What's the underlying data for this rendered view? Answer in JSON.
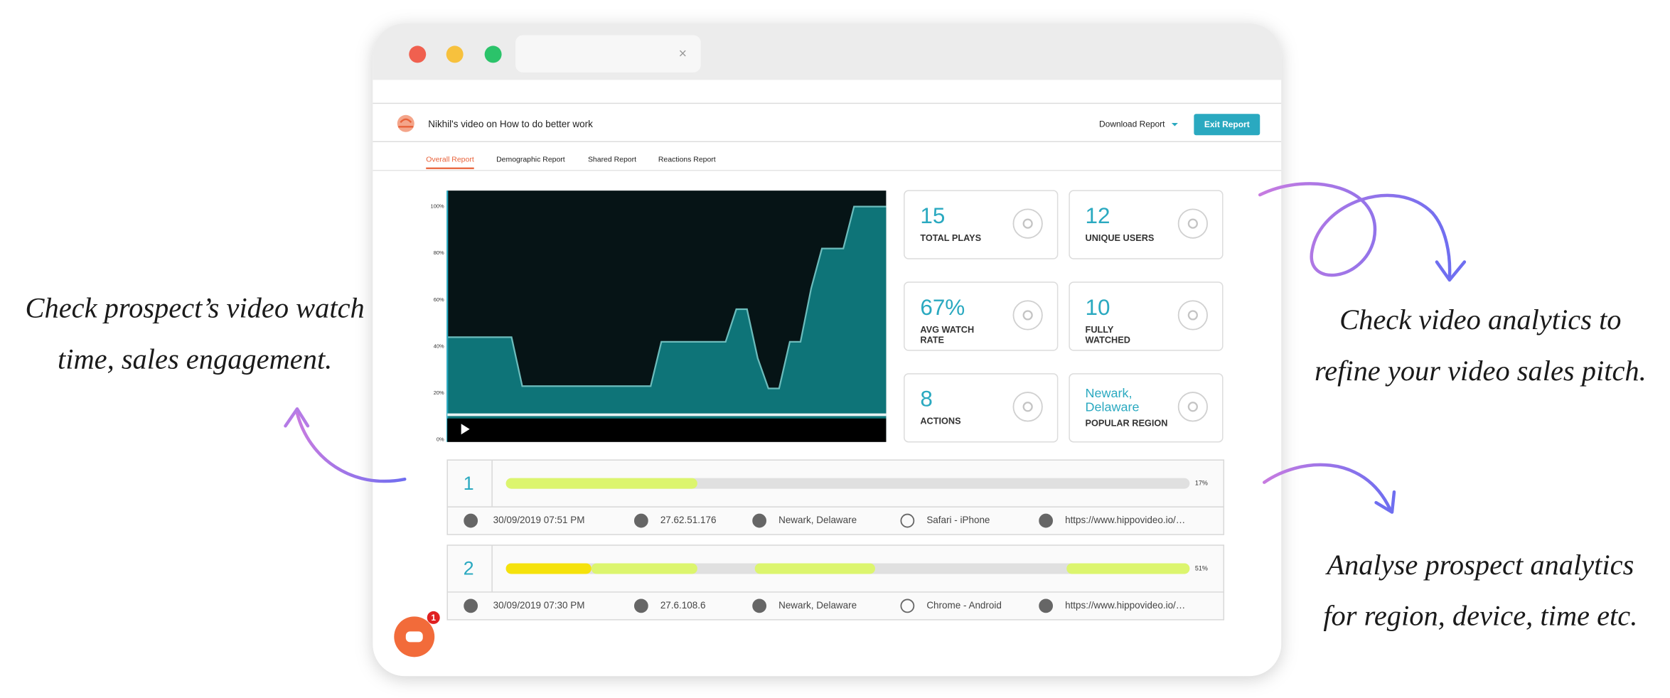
{
  "browser": {
    "tab_close": "×"
  },
  "header": {
    "title": "Nikhil's video on How to do better work",
    "download": "Download Report",
    "exit": "Exit Report"
  },
  "tabs": [
    "Overall Report",
    "Demographic Report",
    "Shared Report",
    "Reactions Report"
  ],
  "chart_data": {
    "type": "area",
    "color": "#0e7478",
    "line_color": "#6cbcbc",
    "background": "#061416",
    "values": [
      44,
      44,
      44,
      44,
      44,
      44,
      44,
      23,
      23,
      23,
      23,
      23,
      23,
      23,
      23,
      23,
      23,
      23,
      23,
      23,
      42,
      42,
      42,
      42,
      42,
      42,
      42,
      56,
      56,
      35,
      22,
      22,
      42,
      42,
      65,
      82,
      82,
      82,
      100,
      100,
      100,
      100
    ],
    "ylim": [
      0,
      100
    ],
    "yticks": [
      {
        "value": 0,
        "label": "0%"
      },
      {
        "value": 20,
        "label": "20%"
      },
      {
        "value": 40,
        "label": "40%"
      },
      {
        "value": 60,
        "label": "60%"
      },
      {
        "value": 80,
        "label": "80%"
      },
      {
        "value": 100,
        "label": "100%"
      }
    ]
  },
  "stats": [
    {
      "value": "15",
      "label": [
        "TOTAL PLAYS"
      ]
    },
    {
      "value": "12",
      "label": [
        "UNIQUE USERS"
      ]
    },
    {
      "value": "67%",
      "label": [
        "AVG WATCH",
        "RATE"
      ]
    },
    {
      "value": "10",
      "label": [
        "FULLY",
        "WATCHED"
      ]
    },
    {
      "value": "8",
      "label": [
        "ACTIONS"
      ]
    },
    {
      "value": [
        "Newark,",
        "Delaware"
      ],
      "label": [
        "POPULAR REGION"
      ]
    }
  ],
  "sessions": [
    {
      "number": "1",
      "progress_label": "17%",
      "segments": [
        {
          "start": 0,
          "end": 28,
          "color": "#dcf56e"
        }
      ],
      "time": "30/09/2019 07:51 PM",
      "ip": "27.62.51.176",
      "location": "Newark, Delaware",
      "device": "Safari - iPhone",
      "url": "https://www.hippovideo.io/…"
    },
    {
      "number": "2",
      "progress_label": "51%",
      "segments": [
        {
          "start": 0,
          "end": 12.5,
          "color": "#f5e20c"
        },
        {
          "start": 12.5,
          "end": 28,
          "color": "#dcf56e"
        },
        {
          "start": 36.4,
          "end": 54,
          "color": "#dcf56e"
        },
        {
          "start": 82,
          "end": 100,
          "color": "#dcf56e"
        }
      ],
      "time": "30/09/2019 07:30 PM",
      "ip": "27.6.108.6",
      "location": "Newark, Delaware",
      "device": "Chrome - Android",
      "url": "https://www.hippovideo.io/…"
    }
  ],
  "chat_badge": "1",
  "annotations": [
    {
      "lines": [
        "Check prospect’s video watch",
        "time, sales engagement."
      ]
    },
    {
      "lines": [
        "Check video analytics to",
        "refine your video sales pitch."
      ]
    },
    {
      "lines": [
        "Analyse prospect analytics",
        "for region, device, time etc."
      ]
    }
  ]
}
